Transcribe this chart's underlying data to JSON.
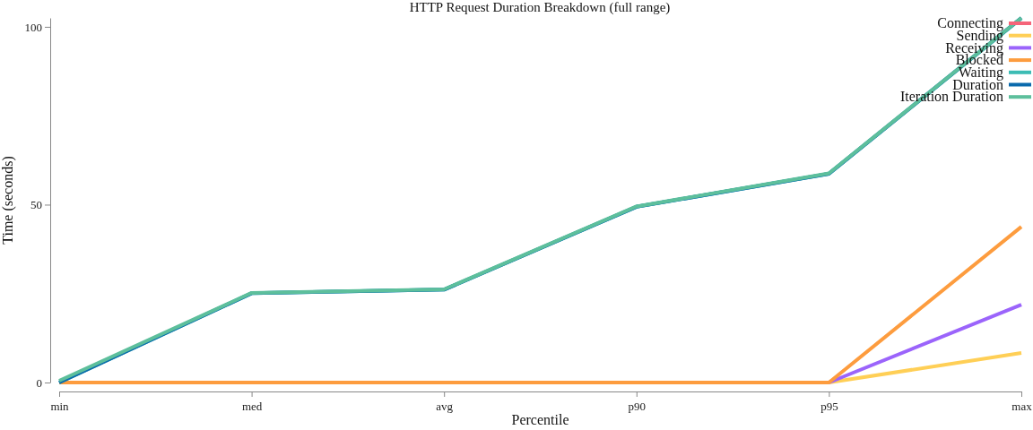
{
  "chart_data": {
    "type": "line",
    "title": "HTTP Request Duration Breakdown (full range)",
    "xlabel": "Percentile",
    "ylabel": "Time (seconds)",
    "categories": [
      "min",
      "med",
      "avg",
      "p90",
      "p95",
      "max"
    ],
    "ylim": [
      0,
      102.5
    ],
    "yticks": [
      0,
      50,
      100
    ],
    "grid": false,
    "legend": "top right",
    "marker": "none",
    "line_style": "solid",
    "series": [
      {
        "name": "Connecting",
        "color": "#f5657a",
        "values": [
          null,
          null,
          null,
          null,
          null,
          null
        ]
      },
      {
        "name": "Sending",
        "color": "#ffcf56",
        "values": [
          null,
          null,
          null,
          null,
          0,
          8.3
        ]
      },
      {
        "name": "Receiving",
        "color": "#9b64fb",
        "values": [
          null,
          null,
          null,
          null,
          0,
          21.9
        ]
      },
      {
        "name": "Blocked",
        "color": "#fd9c3e",
        "values": [
          0,
          0,
          0,
          0,
          0,
          43.8
        ]
      },
      {
        "name": "Waiting",
        "color": "#3cbcb4",
        "values": [
          0,
          25.1,
          26.1,
          49.4,
          58.7,
          102.4
        ]
      },
      {
        "name": "Duration",
        "color": "#0a6aad",
        "values": [
          0,
          25.1,
          26.1,
          49.4,
          58.7,
          102.5
        ]
      },
      {
        "name": "Iteration Duration",
        "color": "#5dbf9c",
        "values": [
          0.5,
          25.2,
          26.2,
          49.5,
          58.8,
          102.5
        ]
      }
    ]
  }
}
